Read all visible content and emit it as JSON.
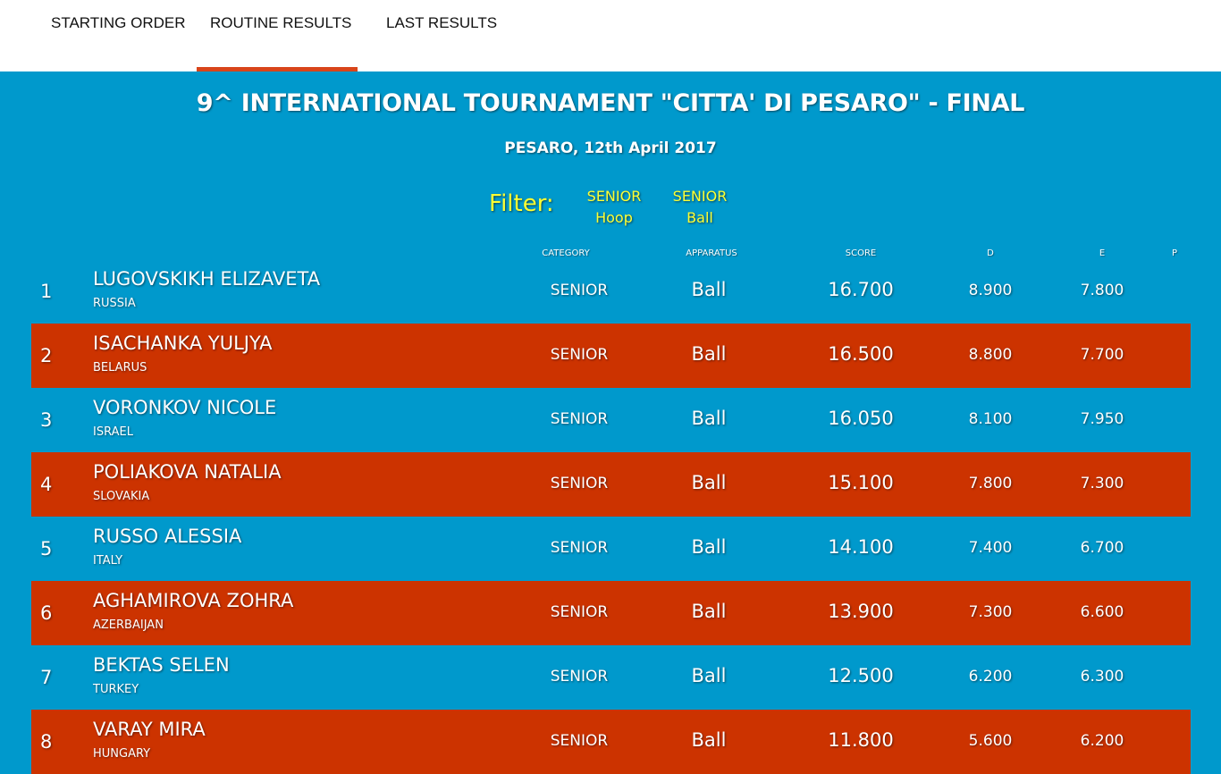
{
  "nav": {
    "tabs": [
      {
        "label": "STARTING ORDER"
      },
      {
        "label": "ROUTINE RESULTS",
        "active": true
      },
      {
        "label": "LAST RESULTS"
      }
    ],
    "accent_color": "#d9451a"
  },
  "header": {
    "title": "9^ INTERNATIONAL TOURNAMENT \"CITTA' DI PESARO\" - FINAL",
    "subtitle": "PESARO, 12th April 2017"
  },
  "filter": {
    "label": "Filter:",
    "options": [
      {
        "line1": "SENIOR",
        "line2": "Hoop"
      },
      {
        "line1": "SENIOR",
        "line2": "Ball"
      }
    ],
    "color": "#ffff33"
  },
  "columns": {
    "category": "CATEGORY",
    "apparatus": "APPARATUS",
    "score": "SCORE",
    "d": "D",
    "e": "E",
    "p": "P"
  },
  "colors": {
    "background": "#0099cc",
    "alt_row": "#cc3300"
  },
  "results": [
    {
      "rank": "1",
      "name": "LUGOVSKIKH ELIZAVETA",
      "nation": "RUSSIA",
      "category": "SENIOR",
      "apparatus": "Ball",
      "score": "16.700",
      "d": "8.900",
      "e": "7.800",
      "p": ""
    },
    {
      "rank": "2",
      "name": "ISACHANKA YULJYA",
      "nation": "BELARUS",
      "category": "SENIOR",
      "apparatus": "Ball",
      "score": "16.500",
      "d": "8.800",
      "e": "7.700",
      "p": ""
    },
    {
      "rank": "3",
      "name": "VORONKOV NICOLE",
      "nation": "ISRAEL",
      "category": "SENIOR",
      "apparatus": "Ball",
      "score": "16.050",
      "d": "8.100",
      "e": "7.950",
      "p": ""
    },
    {
      "rank": "4",
      "name": "POLIAKOVA NATALIA",
      "nation": "SLOVAKIA",
      "category": "SENIOR",
      "apparatus": "Ball",
      "score": "15.100",
      "d": "7.800",
      "e": "7.300",
      "p": ""
    },
    {
      "rank": "5",
      "name": "RUSSO ALESSIA",
      "nation": "ITALY",
      "category": "SENIOR",
      "apparatus": "Ball",
      "score": "14.100",
      "d": "7.400",
      "e": "6.700",
      "p": ""
    },
    {
      "rank": "6",
      "name": "AGHAMIROVA ZOHRA",
      "nation": "AZERBAIJAN",
      "category": "SENIOR",
      "apparatus": "Ball",
      "score": "13.900",
      "d": "7.300",
      "e": "6.600",
      "p": ""
    },
    {
      "rank": "7",
      "name": "BEKTAS SELEN",
      "nation": "TURKEY",
      "category": "SENIOR",
      "apparatus": "Ball",
      "score": "12.500",
      "d": "6.200",
      "e": "6.300",
      "p": ""
    },
    {
      "rank": "8",
      "name": "VARAY MIRA",
      "nation": "HUNGARY",
      "category": "SENIOR",
      "apparatus": "Ball",
      "score": "11.800",
      "d": "5.600",
      "e": "6.200",
      "p": ""
    }
  ]
}
